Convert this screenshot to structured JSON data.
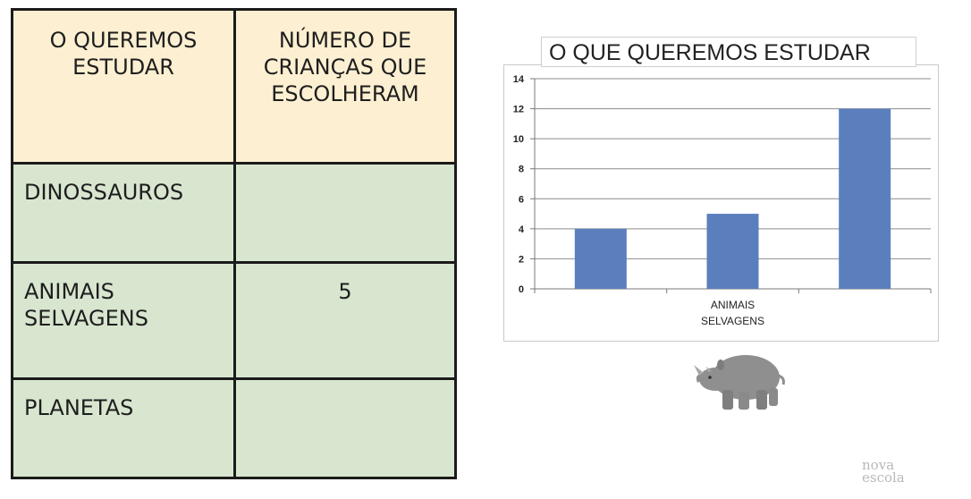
{
  "table": {
    "header": {
      "col1": "O QUEREMOS\nESTUDAR",
      "col2": "NÚMERO DE\nCRIANÇAS QUE\nESCOLHERAM"
    },
    "rows": [
      {
        "label": "DINOSSAUROS",
        "value": ""
      },
      {
        "label": "ANIMAIS\nSELVAGENS",
        "value": "5"
      },
      {
        "label": "PLANETAS",
        "value": ""
      }
    ]
  },
  "chart_data": {
    "type": "bar",
    "title": "O QUE QUEREMOS ESTUDAR",
    "categories": [
      "",
      "ANIMAIS\nSELVAGENS",
      ""
    ],
    "values": [
      4,
      5,
      12
    ],
    "ylim": [
      0,
      14
    ],
    "yticks": [
      0,
      2,
      4,
      6,
      8,
      10,
      12,
      14
    ],
    "grid": true,
    "bar_color": "#5b7fbd"
  },
  "illustration": {
    "icon": "rhino-icon"
  },
  "watermark": {
    "text": "nova\nescola"
  }
}
